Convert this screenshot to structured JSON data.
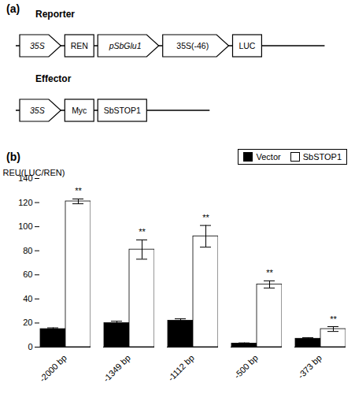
{
  "diagram": {
    "label": "(a)",
    "rows": [
      {
        "label": "Reporter",
        "elements": [
          {
            "text": "35S",
            "shape": "arrow",
            "italic": true
          },
          {
            "text": "REN",
            "shape": "box",
            "italic": false
          },
          {
            "text": "pSbGlu1",
            "shape": "arrow",
            "italic": true
          },
          {
            "text": "35S(-46)",
            "shape": "arrow",
            "italic": false
          },
          {
            "text": "LUC",
            "shape": "box",
            "italic": false
          }
        ]
      },
      {
        "label": "Effector",
        "elements": [
          {
            "text": "35S",
            "shape": "arrow",
            "italic": true
          },
          {
            "text": "Myc",
            "shape": "box",
            "italic": false
          },
          {
            "text": "SbSTOP1",
            "shape": "box",
            "italic": false
          }
        ]
      }
    ]
  },
  "chart_data": {
    "type": "bar",
    "title": "(b)",
    "categories": [
      "-2000 bp",
      "-1349 bp",
      "-1112 bp",
      "-500 bp",
      "-373 bp"
    ],
    "series": [
      {
        "name": "Vector",
        "color": "black",
        "values": [
          15,
          20,
          22,
          3,
          7
        ],
        "errors": [
          1,
          1.5,
          1.5,
          0.5,
          0.8
        ]
      },
      {
        "name": "SbSTOP1",
        "color": "white",
        "values": [
          121,
          81,
          92,
          52,
          15
        ],
        "errors": [
          2,
          8,
          9,
          3,
          2
        ]
      }
    ],
    "annotations": [
      {
        "category": "-2000 bp",
        "series": "SbSTOP1",
        "text": "**"
      },
      {
        "category": "-1349 bp",
        "series": "SbSTOP1",
        "text": "**"
      },
      {
        "category": "-1112 bp",
        "series": "SbSTOP1",
        "text": "**"
      },
      {
        "category": "-500 bp",
        "series": "SbSTOP1",
        "text": "**"
      },
      {
        "category": "-373 bp",
        "series": "SbSTOP1",
        "text": "**"
      }
    ],
    "ylabel": "REU(LUC/REN)",
    "ylim": [
      0,
      140
    ],
    "yticks": [
      0,
      20,
      40,
      60,
      80,
      100,
      120,
      140
    ],
    "grid": false,
    "legend": "upper right"
  }
}
